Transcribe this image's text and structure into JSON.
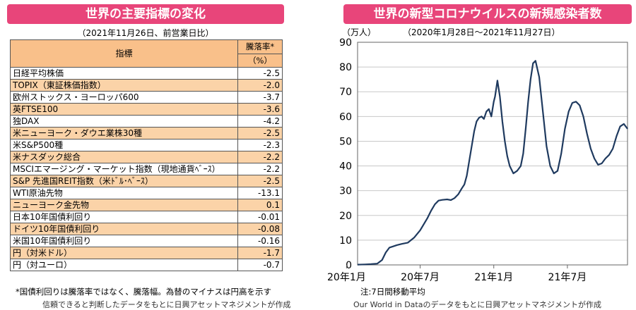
{
  "left_panel": {
    "title": "世界の主要指標の変化",
    "subtitle": "（2021年11月26日、前営業日比）",
    "table": {
      "header_name": "指標",
      "header_value_line1": "騰落率*",
      "header_value_line2": "（%）",
      "rows": [
        {
          "name": "日経平均株価",
          "value": "-2.5"
        },
        {
          "name": "TOPIX（東証株価指数）",
          "value": "-2.0"
        },
        {
          "name": "欧州ストックス・ヨーロッパ600",
          "value": "-3.7"
        },
        {
          "name": "英FTSE100",
          "value": "-3.6"
        },
        {
          "name": "独DAX",
          "value": "-4.2"
        },
        {
          "name": "米ニューヨーク・ダウエ業株30種",
          "value": "-2.5"
        },
        {
          "name": "米S&P500種",
          "value": "-2.3"
        },
        {
          "name": "米ナスダック総合",
          "value": "-2.2"
        },
        {
          "name": "MSCIエマージング・マーケット指数（現地通貨ﾍﾞｰｽ）",
          "value": "-2.2"
        },
        {
          "name": "S&P 先進国REIT指数（米ﾄﾞﾙ･ﾍﾞｰｽ）",
          "value": "-2.5"
        },
        {
          "name": "WTI原油先物",
          "value": "-13.1"
        },
        {
          "name": "ニューヨーク金先物",
          "value": "0.1"
        },
        {
          "name": "日本10年国債利回り",
          "value": "-0.01"
        },
        {
          "name": "ドイツ10年国債利回り",
          "value": "-0.08"
        },
        {
          "name": "米国10年国債利回り",
          "value": "-0.16"
        },
        {
          "name": "円（対米ドル）",
          "value": "-1.7"
        },
        {
          "name": "円（対ユーロ）",
          "value": "-0.7"
        }
      ],
      "row_highlight_color": "#fbd3a8",
      "header_color": "#f9c08a"
    },
    "note": "*国債利回りは騰落率ではなく、騰落幅。為替のマイナスは円高を示す",
    "source": "信頼できると判断したデータをもとに日興アセットマネジメントが作成"
  },
  "right_panel": {
    "title": "世界の新型コロナウイルスの新規感染者数",
    "note": "注:7日間移動平均",
    "source": "Our World in Dataのデータをもとに日興アセットマネジメントが作成"
  },
  "colors": {
    "banner": "#e8457a",
    "line": "#1f3a5f"
  },
  "chart_data": {
    "type": "line",
    "title": "世界の新型コロナウイルスの新規感染者数",
    "subtitle": "（2020年1月28日～2021年11月27日）",
    "ylabel": "（万人）",
    "ylim": [
      0,
      90
    ],
    "yticks": [
      0,
      10,
      20,
      30,
      40,
      50,
      60,
      70,
      80,
      90
    ],
    "xtick_labels": [
      "20年1月",
      "20年7月",
      "21年1月",
      "21年7月"
    ],
    "xtick_months": [
      0,
      6,
      12,
      18
    ],
    "x_month_range": [
      0.9,
      22.9
    ],
    "grid": true,
    "series": [
      {
        "x": [
          0.9,
          1.5,
          2.0,
          2.5,
          2.9,
          3.2,
          3.5,
          3.8,
          4.1,
          4.5,
          5.0,
          5.5,
          6.0,
          6.3,
          6.6,
          6.9,
          7.2,
          7.5,
          7.8,
          8.2,
          8.5,
          8.8,
          9.1,
          9.4,
          9.6,
          9.8,
          10.0,
          10.2,
          10.4,
          10.6,
          10.8,
          11.0,
          11.2,
          11.4,
          11.6,
          11.8,
          12.0,
          12.1,
          12.3,
          12.5,
          12.7,
          12.9,
          13.1,
          13.3,
          13.6,
          13.9,
          14.2,
          14.4,
          14.6,
          14.8,
          15.0,
          15.2,
          15.4,
          15.7,
          16.0,
          16.3,
          16.6,
          16.9,
          17.2,
          17.5,
          17.8,
          18.1,
          18.4,
          18.7,
          19.0,
          19.3,
          19.6,
          19.9,
          20.2,
          20.5,
          20.8,
          21.1,
          21.4,
          21.7,
          22.0,
          22.3,
          22.6,
          22.75,
          22.9
        ],
        "y": [
          0.1,
          0.2,
          0.3,
          0.5,
          2.0,
          5.0,
          7.0,
          7.5,
          8.0,
          8.5,
          9.0,
          11.0,
          14.0,
          16.5,
          19.0,
          22.0,
          24.5,
          26.0,
          26.3,
          26.5,
          26.2,
          27.0,
          28.5,
          31.0,
          32.5,
          36.0,
          42.0,
          48.0,
          54.0,
          58.0,
          59.5,
          60.0,
          59.0,
          62.0,
          63.0,
          60.0,
          66.0,
          68.0,
          74.5,
          68.0,
          58.0,
          50.0,
          44.0,
          40.0,
          37.0,
          38.0,
          40.0,
          45.0,
          55.0,
          66.0,
          75.0,
          81.5,
          82.5,
          76.0,
          62.0,
          48.0,
          40.0,
          37.0,
          38.0,
          45.0,
          55.0,
          62.0,
          65.5,
          66.0,
          64.5,
          60.0,
          53.0,
          47.0,
          43.0,
          40.5,
          41.0,
          43.0,
          44.5,
          47.0,
          52.0,
          56.0,
          57.0,
          56.0,
          55.0
        ]
      }
    ]
  }
}
